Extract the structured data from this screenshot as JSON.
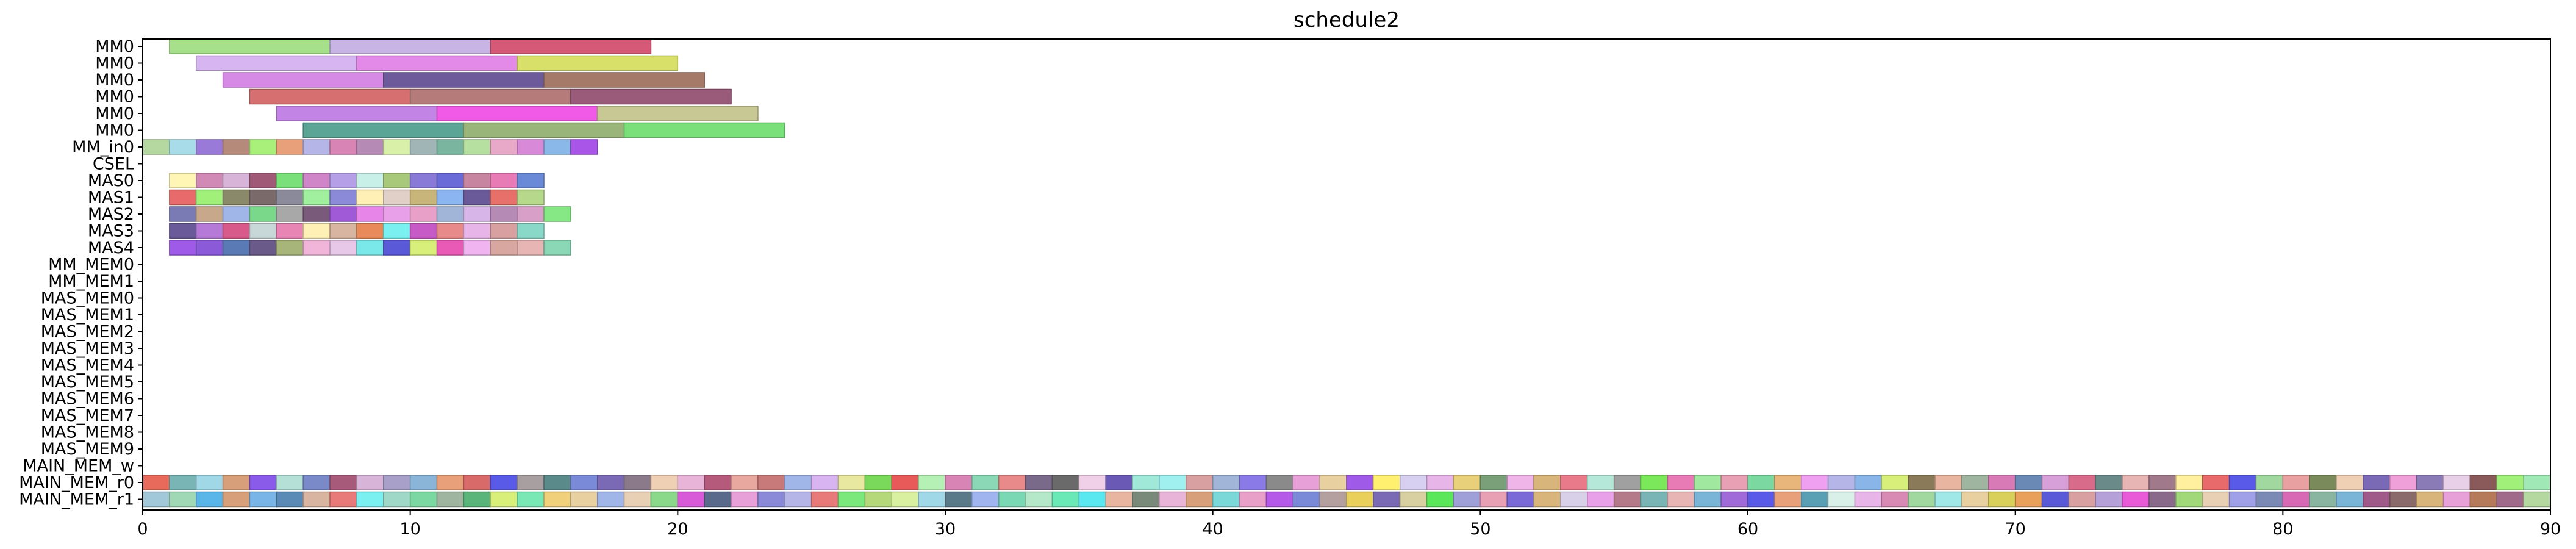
{
  "chart_data": {
    "type": "gantt",
    "title": "schedule2",
    "xlim": [
      0,
      90
    ],
    "xticks": [
      0,
      10,
      20,
      30,
      40,
      50,
      60,
      70,
      80,
      90
    ],
    "rows": [
      "MM0",
      "MM0",
      "MM0",
      "MM0",
      "MM0",
      "MM0",
      "MM_in0",
      "CSEL",
      "MAS0",
      "MAS1",
      "MAS2",
      "MAS3",
      "MAS4",
      "MM_MEM0",
      "MM_MEM1",
      "MAS_MEM0",
      "MAS_MEM1",
      "MAS_MEM2",
      "MAS_MEM3",
      "MAS_MEM4",
      "MAS_MEM5",
      "MAS_MEM6",
      "MAS_MEM7",
      "MAS_MEM8",
      "MAS_MEM9",
      "MAIN_MEM_w",
      "MAIN_MEM_r0",
      "MAIN_MEM_r1"
    ],
    "bars": [
      {
        "row": 0,
        "start": 1,
        "end": 7,
        "color": "#a6e08a"
      },
      {
        "row": 0,
        "start": 7,
        "end": 13,
        "color": "#c8b5e6"
      },
      {
        "row": 0,
        "start": 13,
        "end": 19,
        "color": "#d65a78"
      },
      {
        "row": 1,
        "start": 2,
        "end": 8,
        "color": "#d7b5f0"
      },
      {
        "row": 1,
        "start": 8,
        "end": 14,
        "color": "#e38ae8"
      },
      {
        "row": 1,
        "start": 14,
        "end": 20,
        "color": "#d8e06a"
      },
      {
        "row": 2,
        "start": 3,
        "end": 9,
        "color": "#d68ae6"
      },
      {
        "row": 2,
        "start": 9,
        "end": 15,
        "color": "#6d5a9a"
      },
      {
        "row": 2,
        "start": 15,
        "end": 21,
        "color": "#a57a68"
      },
      {
        "row": 3,
        "start": 4,
        "end": 10,
        "color": "#d67070"
      },
      {
        "row": 3,
        "start": 10,
        "end": 16,
        "color": "#b57a7a"
      },
      {
        "row": 3,
        "start": 16,
        "end": 22,
        "color": "#9a5a7a"
      },
      {
        "row": 4,
        "start": 5,
        "end": 11,
        "color": "#c285e6"
      },
      {
        "row": 4,
        "start": 11,
        "end": 17,
        "color": "#f05ae6"
      },
      {
        "row": 4,
        "start": 17,
        "end": 23,
        "color": "#c8c895"
      },
      {
        "row": 5,
        "start": 6,
        "end": 12,
        "color": "#5aa595"
      },
      {
        "row": 5,
        "start": 12,
        "end": 18,
        "color": "#9ab57a"
      },
      {
        "row": 5,
        "start": 18,
        "end": 24,
        "color": "#7ae07a"
      }
    ],
    "unit_rows": [
      {
        "row": 6,
        "start": 0,
        "colors": [
          "#b5d8a0",
          "#a8dce8",
          "#9a7ad8",
          "#b58a7a",
          "#a8f07a",
          "#e8a07a",
          "#b5b5e8",
          "#d885b5",
          "#b58ab5",
          "#d8f0a8",
          "#a0b5b5",
          "#7ab5a0",
          "#b5e0a0",
          "#e8a8c8",
          "#d88ad8",
          "#8ab8e8",
          "#a855e8"
        ]
      },
      {
        "row": 8,
        "start": 1,
        "colors": [
          "#fff5b5",
          "#d08ab5",
          "#d8b5d8",
          "#a05a78",
          "#7ae07a",
          "#d085c8",
          "#b5a0e8",
          "#c8f0e8",
          "#a8c87a",
          "#8a7ad8",
          "#6a6ad8",
          "#c885a0",
          "#e87ab5",
          "#6a8ad8"
        ]
      },
      {
        "row": 9,
        "start": 1,
        "colors": [
          "#e86a6a",
          "#a0f07a",
          "#8a8a6a",
          "#7a6a6a",
          "#8a8a9a",
          "#a0f0a0",
          "#8a8ad8",
          "#fff0b5",
          "#e0d0c8",
          "#c8b57a",
          "#8ab5f0",
          "#6a5a9a",
          "#e8706a",
          "#b5d88a"
        ]
      },
      {
        "row": 10,
        "start": 1,
        "colors": [
          "#7a7ab5",
          "#c8a88a",
          "#a0b5e8",
          "#7ad88a",
          "#a8a8a8",
          "#7a5a7a",
          "#a05ad8",
          "#e885e8",
          "#e8a0e8",
          "#e8a0c8",
          "#a0b5d8",
          "#d8b5e8",
          "#b58ab5",
          "#d8a0c8",
          "#85e885"
        ]
      },
      {
        "row": 11,
        "start": 1,
        "colors": [
          "#6a5a9a",
          "#b57ad8",
          "#d85a8a",
          "#c8d8d8",
          "#e885b5",
          "#fff0b5",
          "#d8b5a0",
          "#e88a5a",
          "#7af0f0",
          "#c85ac8",
          "#e88a8a",
          "#e8b5e8",
          "#d8a0a0",
          "#8ad8c8"
        ]
      },
      {
        "row": 12,
        "start": 1,
        "colors": [
          "#a05ae8",
          "#8a5ad8",
          "#5a7ab5",
          "#6a5a8a",
          "#a8b57a",
          "#f0b5d8",
          "#e8c8e8",
          "#7ae8e8",
          "#5a5ad8",
          "#d8f07a",
          "#e85ab5",
          "#f0b5f0",
          "#d8a8a0",
          "#e8b5b5",
          "#8ad8b5"
        ]
      },
      {
        "row": 26,
        "start": 0,
        "colors": [
          "#e86a5a",
          "#7ab5b5",
          "#a0d8e8",
          "#d8a07a",
          "#8a5ae8",
          "#b5e0d8",
          "#7a8ac8",
          "#a85a7a",
          "#d8b5d8",
          "#a8a0c8",
          "#8ab5d8",
          "#e8a07a",
          "#d86a6a",
          "#5a5ae8",
          "#a8a0a0",
          "#5a8a8a",
          "#7a8ad8",
          "#7a6ab5",
          "#8a7a8a",
          "#f0d0b5",
          "#e8b5d8",
          "#b55a7a",
          "#e8a8a0",
          "#c87a7a",
          "#a0b5e8",
          "#d8b5f0",
          "#e8e8a0",
          "#7ad85a",
          "#e85a5a",
          "#b5f0b5",
          "#d885b5",
          "#8ad8b5",
          "#e88a8a",
          "#7a6a8a",
          "#6a6a6a",
          "#f0d0e8",
          "#6a5ab5",
          "#a0e8d8",
          "#a0f0f0",
          "#d8a0a0",
          "#a0b5d8",
          "#8a7ae8",
          "#8a8a8a",
          "#e8a0d8",
          "#e8d0a0",
          "#a05ae8",
          "#fff070",
          "#d8d0f0",
          "#e8b5e8",
          "#e8d07a",
          "#7aa07a",
          "#f0b5e8",
          "#d8b57a",
          "#e87a8a",
          "#b5e8d8",
          "#a0a0a0",
          "#7ae85a",
          "#e87ab5",
          "#a0e8a0",
          "#e8a0b5",
          "#7ad8a0",
          "#e8b57a",
          "#f0a0f0",
          "#b5b5e8",
          "#8ab5e8",
          "#d8f07a",
          "#8a7a5a",
          "#e8b5a0",
          "#a0b5a0",
          "#d87ab5",
          "#6a8ab5",
          "#d8a0d8",
          "#d86a8a",
          "#6a8a8a",
          "#e8b5b5",
          "#a07a8a",
          "#fff0a0",
          "#e86a6a",
          "#5a5ae8",
          "#a0d8a0",
          "#e8a0a0",
          "#7a8a5a",
          "#f0d0b5",
          "#7a6ab5",
          "#f0a0d8",
          "#8a7ab5",
          "#e8d0e8",
          "#8a5a5a",
          "#a0f07a",
          "#a0e8b5"
        ]
      },
      {
        "row": 27,
        "start": 0,
        "colors": [
          "#a0c8d8",
          "#a0d8b5",
          "#5ab5e8",
          "#d8a07a",
          "#7ab5e8",
          "#5a8ab5",
          "#d8b5a0",
          "#e87a7a",
          "#7af0f0",
          "#a0d8c8",
          "#7ad8a0",
          "#a0b5a0",
          "#5ab57a",
          "#d8f07a",
          "#7ae8b5",
          "#f0d07a",
          "#e8d0a0",
          "#a0b5e8",
          "#e8d0b5",
          "#8ad88a",
          "#d85ad8",
          "#5a6a8a",
          "#e8a0d8",
          "#8a8ad8",
          "#b5b5e8",
          "#e87a7a",
          "#7ae87a",
          "#b5d87a",
          "#d8f0a0",
          "#a0d8e8",
          "#5a7a8a",
          "#a0b5f0",
          "#7ad8b5",
          "#b5e8c8",
          "#6ae8b5",
          "#5ae8f0",
          "#e8b5a0",
          "#7a8a7a",
          "#e8b5d8",
          "#d8a07a",
          "#7ad8d8",
          "#e8a0c8",
          "#b55ae8",
          "#7a8ad8",
          "#b5a0a0",
          "#e8d05a",
          "#7a6ab5",
          "#d8d0a0",
          "#5ae85a",
          "#a0a0d8",
          "#e8a0b5",
          "#7a6ad8",
          "#d8b57a",
          "#d8d0e8",
          "#e8a0e8",
          "#b57a8a",
          "#7ab5b5",
          "#e8b5b5",
          "#7ab5d8",
          "#a06ad8",
          "#5a5ae8",
          "#e8a07a",
          "#5aa0b5",
          "#d8f0e8",
          "#e8b5e8",
          "#d88ab5",
          "#a0d8a0",
          "#a0e8e8",
          "#e8d0a0",
          "#d8d05a",
          "#e8a05a",
          "#5a5ad8",
          "#d8a0a0",
          "#b5a0d8",
          "#e85ad8",
          "#8a6a8a",
          "#a0d87a",
          "#e8d0b5",
          "#a0a0e8",
          "#7a8ab5",
          "#d86ab5",
          "#8ab5a0",
          "#7ab5d8",
          "#a05a8a",
          "#8a6a6a",
          "#d8b57a",
          "#e8a0d8",
          "#b57a5a",
          "#a06a8a",
          "#b5d8a0"
        ]
      }
    ]
  }
}
